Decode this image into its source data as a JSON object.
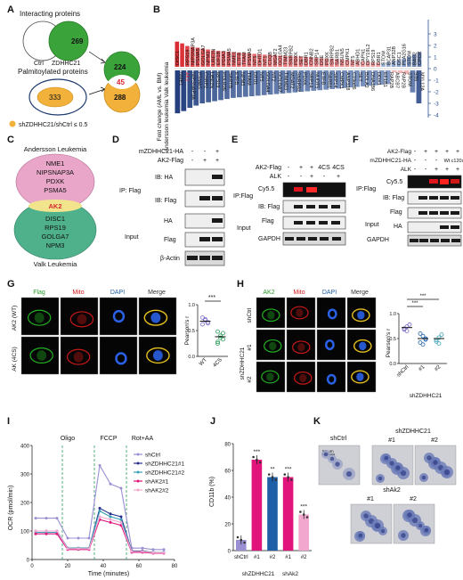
{
  "panel_A": {
    "letter": "A",
    "top_label": "Interacting proteins",
    "ctrl_label": "Ctrl",
    "zdhhc21_label": "ZDHHC21",
    "count_269": "269",
    "mid_label": "Palmitoylated proteins",
    "count_333": "333",
    "legend_text": "shZDHHC21/shCtrl ≤ 0.5",
    "count_224": "224",
    "count_45": "45",
    "count_288": "288",
    "colors": {
      "green": "#3aa43a",
      "orange": "#f2b13a",
      "dark_blue": "#1f3c6e",
      "red": "#d9272e"
    }
  },
  "panel_B": {
    "letter": "B",
    "ylabel_1": "Fold change (AML vs. BM)",
    "ylabel_2": "Andersson leukemia Valk leukemia",
    "chart_data": {
      "type": "bar",
      "ylim": [
        -4,
        3
      ],
      "yticks": [
        "3",
        "2",
        "1",
        "0",
        "-1",
        "-2",
        "-3",
        "-4"
      ],
      "upper": {
        "categories": [
          "DISC1",
          "AK2",
          "RPS19",
          "NIPSNAP3A",
          "PSMA5",
          "GOLGA7",
          "NPM3",
          "UBE2N",
          "EIF1B",
          "PDIA3",
          "PSMA5",
          "NME1",
          "ETFB",
          "TFAM",
          "PSMA5",
          "NT5",
          "DHTD1",
          "NT1",
          "C1QB",
          "MGAT2",
          "GOLGA4",
          "TIMM23",
          "SNRPB2",
          "PDXK",
          "SET",
          "DBR1",
          "CNNB2",
          "SRP14",
          "DSE",
          "PDXK",
          "SNRPB2",
          "SARB1",
          "NSUN5",
          "CMPK1",
          "NT5",
          "ABHD1",
          "CAPN1",
          "DPY19L2",
          "RPS19",
          "DBR1",
          "STOM",
          "BCAP31",
          "ANP32B",
          "DSC1",
          "PLA2G16",
          "STOM",
          "BAG2",
          "CPOX"
        ],
        "values": [
          2.9,
          2.7,
          2.4,
          2.3,
          2.2,
          2.1,
          2.0,
          1.9,
          1.85,
          1.8,
          1.75,
          1.7,
          1.65,
          1.6,
          1.55,
          1.5,
          1.45,
          1.4,
          1.38,
          1.35,
          1.3,
          1.28,
          1.25,
          1.22,
          1.2,
          1.15,
          1.1,
          1.05,
          1.0,
          0.98,
          0.95,
          0.9,
          0.85,
          0.8,
          0.75,
          0.7,
          0.65,
          0.6,
          0.55,
          0.5,
          -0.5,
          -0.7,
          -0.9,
          -1.0,
          -1.2,
          -1.5,
          -1.8,
          -2.1
        ]
      },
      "lower": {
        "categories": [
          "NME1",
          "AK2",
          "NIPSNAP3A",
          "PSMA5",
          "CSRP2",
          "UBE2N",
          "RPS19",
          "POLR2E",
          "SARTB",
          "ETFB",
          "NPM3",
          "TFAM",
          "DTD1",
          "NT5",
          "GOLGA4",
          "NT2",
          "GOLGA7",
          "TIMM23",
          "MGAT2",
          "SNRPB2",
          "PDXK",
          "SRP14",
          "NUDT5",
          "ETFB",
          "SARB1",
          "SRP14",
          "CMPK1",
          "ANP328",
          "C19orf6",
          "SET",
          "BOLA2",
          "DNAJB6",
          "DDX1",
          "EF1B1",
          "RAP2B",
          "ABCB7",
          "RAP2B",
          "STOM",
          "ST6",
          "MYL12A"
        ],
        "values": [
          -3.9,
          -3.7,
          -3.4,
          -3.2,
          -3.0,
          -2.9,
          -2.8,
          -2.7,
          -2.6,
          -2.5,
          -2.45,
          -2.4,
          -2.35,
          -2.3,
          -2.25,
          -2.2,
          -2.15,
          -2.1,
          -2.05,
          -2.0,
          -1.95,
          -1.9,
          -1.85,
          -1.8,
          -1.75,
          -1.7,
          -1.65,
          -1.6,
          -1.55,
          -1.5,
          -1.45,
          -1.4,
          -1.35,
          -1.3,
          -1.25,
          0.4,
          0.6,
          0.8,
          -2.0,
          -3.0
        ]
      },
      "colors": {
        "pos_strong": "#d9272e",
        "pos_light": "#f3b7b7",
        "neg_light": "#aec3e4",
        "neg_strong": "#1f3c7a"
      }
    }
  },
  "panel_C": {
    "letter": "C",
    "title": "Andersson Leukemia",
    "top_genes": [
      "NME1",
      "NIPSNAP3A",
      "PDXK",
      "PSMA5"
    ],
    "shared_gene": "AK2",
    "bottom_genes": [
      "DISC1",
      "RPS19",
      "GOLGA7",
      "NPM3"
    ],
    "bottom_title": "Valk Leukemia"
  },
  "panel_D": {
    "letter": "D",
    "col_headers": [
      "mZDHHC21-HA",
      "AK2-Flag"
    ],
    "col_signs": [
      [
        "-",
        "-",
        "+"
      ],
      [
        "-",
        "+",
        "+"
      ]
    ],
    "ip_label": "IP: Flag",
    "row_labels": [
      "IB: HA",
      "IB: Flag",
      "HA",
      "Flag",
      "β-Actin"
    ],
    "input_label": "Input"
  },
  "panel_E": {
    "letter": "E",
    "col_headers": [
      "AK2-Flag",
      "ALK"
    ],
    "col_signs": [
      [
        "-",
        "+",
        "+",
        "4CS",
        "4CS"
      ],
      [
        "-",
        "-",
        "+",
        "-",
        "+"
      ]
    ],
    "ip_label": "IP:Flag",
    "row_labels": [
      "Cy5.5",
      "IB: Flag",
      "Flag",
      "GAPDH"
    ],
    "input_label": "Input"
  },
  "panel_F": {
    "letter": "F",
    "col_headers": [
      "AK2-Flag",
      "mZDHHC21-HA",
      "ALK"
    ],
    "col_signs": [
      [
        "-",
        "+",
        "+",
        "+",
        "+"
      ],
      [
        "-",
        "-",
        "-",
        "Wt",
        "c120s"
      ],
      [
        "-",
        "-",
        "+",
        "+",
        "+"
      ]
    ],
    "ip_label": "IP:Flag",
    "row_labels": [
      "Cy5.5",
      "IB: Flag",
      "Flag",
      "HA",
      "GAPDH"
    ],
    "input_label": "Input"
  },
  "panel_G": {
    "letter": "G",
    "channels": [
      "Flag",
      "Mito",
      "DAPI",
      "Merge"
    ],
    "rows": [
      "AK2 (WT)",
      "AK (4CS)"
    ],
    "ylabel": "Pearson's r",
    "sig": "***",
    "chart_data": {
      "type": "scatter",
      "categories": [
        "WT",
        "4CS"
      ],
      "means": [
        0.68,
        0.38
      ],
      "ylim": [
        0,
        1.0
      ],
      "yticks": [
        "0.0",
        "0.5",
        "1.0"
      ]
    }
  },
  "panel_H": {
    "letter": "H",
    "channels": [
      "AK2",
      "Mito",
      "DAPI",
      "Merge"
    ],
    "rows": [
      "shCtrl",
      "#1",
      "#2"
    ],
    "group_label": "shZDHHC21",
    "ylabel": "Pearson's r",
    "sig": "***",
    "chart_data": {
      "type": "scatter",
      "categories": [
        "shCtrl",
        "#1",
        "#2"
      ],
      "means": [
        0.72,
        0.5,
        0.5
      ],
      "ylim": [
        0,
        1.0
      ],
      "yticks": [
        "0.0",
        "0.5",
        "1.0"
      ],
      "group": "shZDHHC21"
    }
  },
  "panel_I": {
    "letter": "I",
    "ylabel": "OCR (pmol/min)",
    "xlabel": "Time (minutes)",
    "markers": [
      "Oligo",
      "FCCP",
      "Rot+AA"
    ],
    "chart_data": {
      "type": "line",
      "x": [
        2,
        8,
        14,
        20,
        26,
        32,
        38,
        44,
        50,
        56,
        62,
        68,
        74
      ],
      "xlim": [
        0,
        80
      ],
      "xticks": [
        "0",
        "20",
        "40",
        "60",
        "80"
      ],
      "ylim": [
        0,
        400
      ],
      "yticks": [
        "0",
        "100",
        "200",
        "300",
        "400"
      ],
      "series": [
        {
          "name": "shCtrl",
          "color": "#9b8fd4",
          "values": [
            145,
            145,
            145,
            75,
            75,
            75,
            330,
            265,
            250,
            40,
            40,
            35,
            35
          ]
        },
        {
          "name": "shZDHHC21#1",
          "color": "#27318f",
          "values": [
            100,
            100,
            100,
            40,
            40,
            40,
            180,
            160,
            150,
            30,
            30,
            25,
            25
          ]
        },
        {
          "name": "shZDHHC21#2",
          "color": "#3aa0b5",
          "values": [
            95,
            95,
            95,
            40,
            40,
            40,
            170,
            150,
            140,
            28,
            28,
            25,
            25
          ]
        },
        {
          "name": "shAK2#1",
          "color": "#e0147a",
          "values": [
            90,
            90,
            90,
            35,
            35,
            35,
            140,
            130,
            120,
            25,
            25,
            22,
            22
          ]
        },
        {
          "name": "shAK2#2",
          "color": "#f2a7cf",
          "values": [
            100,
            100,
            100,
            38,
            38,
            38,
            150,
            140,
            130,
            28,
            28,
            24,
            24
          ]
        }
      ]
    }
  },
  "panel_J": {
    "letter": "J",
    "ylabel": "CD11b (%)",
    "groups": [
      "shZDHHC21",
      "shAk2"
    ],
    "chart_data": {
      "type": "bar",
      "categories": [
        "shCtrl",
        "#1",
        "#2",
        "#1",
        "#2"
      ],
      "values": [
        8,
        68,
        55,
        55,
        27
      ],
      "sig": [
        "",
        "***",
        "**",
        "***",
        "***"
      ],
      "colors": [
        "#9b8fd4",
        "#e0147a",
        "#1e5fa8",
        "#e0147a",
        "#f2a7cf"
      ],
      "ylim": [
        0,
        80
      ],
      "yticks": [
        "0",
        "20",
        "40",
        "60",
        "80"
      ]
    }
  },
  "panel_K": {
    "letter": "K",
    "labels": [
      "shCtrl",
      "shZDHHC21",
      "#1",
      "#2",
      "shAk2",
      "#1",
      "#2"
    ],
    "scale": "50 µm"
  }
}
